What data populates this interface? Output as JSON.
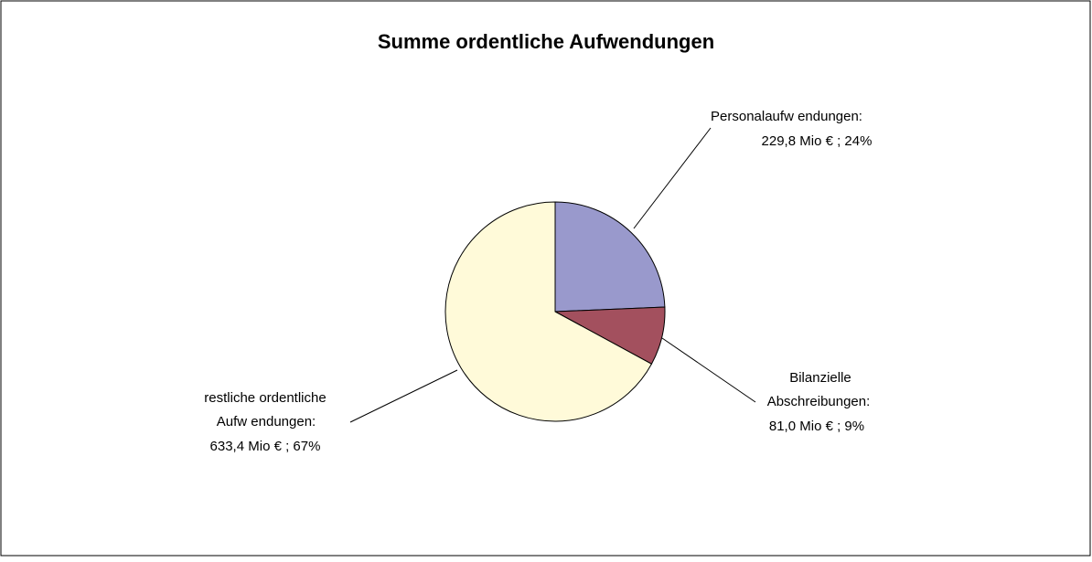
{
  "chart_data": {
    "type": "pie",
    "title": "Summe ordentliche Aufwendungen",
    "categories": [
      [
        "Personalaufw endungen:"
      ],
      [
        "Bilanzielle",
        "Abschreibungen:"
      ],
      [
        "restliche ordentliche",
        "Aufw endungen:"
      ]
    ],
    "values": [
      229.8,
      81.0,
      633.4
    ],
    "value_labels": [
      "229,8 Mio € ; 24%",
      "81,0 Mio € ; 9%",
      "633,4 Mio € ; 67%"
    ],
    "colors": [
      "#9999cc",
      "#a3505e",
      "#fffad9"
    ]
  }
}
